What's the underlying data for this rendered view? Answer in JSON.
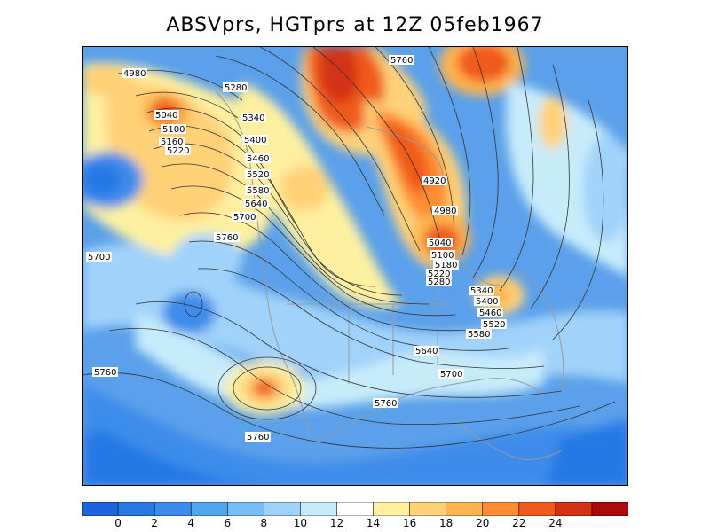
{
  "title": "ABSVprs, HGTprs at 12Z  05feb1967",
  "colorbar": {
    "colors": [
      "#1e64dc",
      "#2878e6",
      "#3c8ceb",
      "#50a5f0",
      "#78bef5",
      "#a0d2fa",
      "#c8ebfa",
      "#ffffff",
      "#fff0a0",
      "#ffd278",
      "#ffb450",
      "#ff8c32",
      "#f05a1e",
      "#d23214",
      "#aa0a0a"
    ],
    "ticks": [
      "0",
      "2",
      "4",
      "6",
      "8",
      "10",
      "12",
      "14",
      "16",
      "18",
      "20",
      "22",
      "24"
    ]
  },
  "contours": [
    "4980",
    "5280",
    "5040",
    "5100",
    "5160",
    "5220",
    "5340",
    "5400",
    "5460",
    "5520",
    "5580",
    "5640",
    "5700",
    "5760",
    "4920",
    "4980",
    "5040",
    "5100",
    "5180",
    "5220",
    "5280",
    "5340",
    "5400",
    "5460",
    "5520",
    "5580",
    "5640",
    "5700",
    "5760",
    "5760",
    "5760",
    "5700",
    "5760"
  ]
}
